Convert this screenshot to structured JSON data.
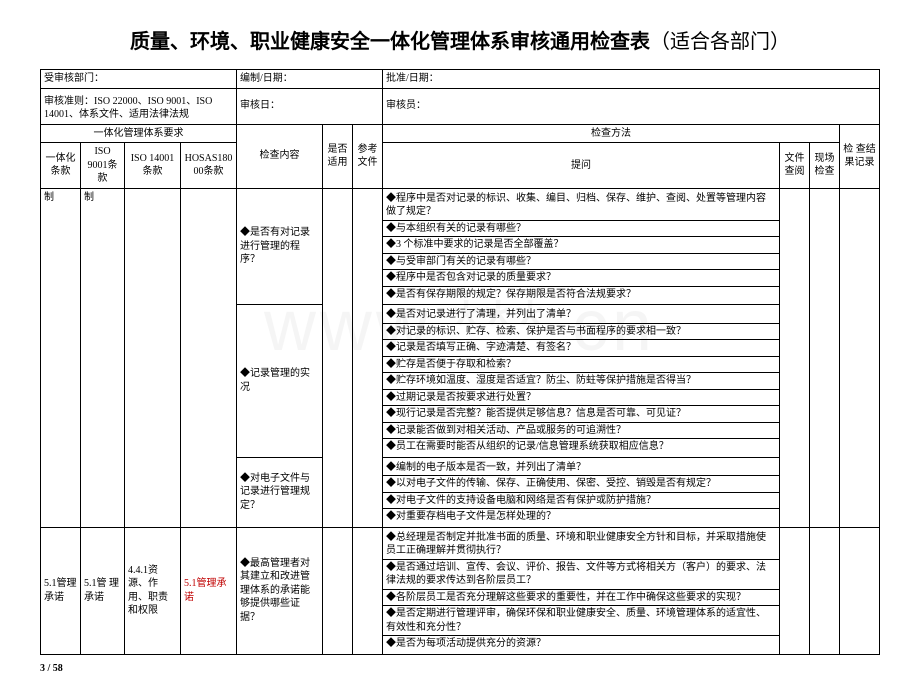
{
  "title_main": "质量、环境、职业健康安全一体化管理体系审核通用检查表",
  "title_sub": "（适合各部门）",
  "meta": {
    "audited_dept_label": "受审核部门：",
    "compile_date_label": "编制/日期：",
    "approve_date_label": "批准/日期：",
    "criteria_label": "审核准则：ISO 22000、ISO 9001、ISO 14001、体系文件、适用法律法规",
    "audit_date_label": "审核日：",
    "auditor_label": "审核员："
  },
  "head": {
    "group_req": "一体化管理体系要求",
    "c1": "一体化条款",
    "c2": "ISO 9001条款",
    "c3": "ISO 14001条款",
    "c4": "HOSAS18000条款",
    "c_inspect": "检查内容",
    "c_apply": "是否适用",
    "c_ref": "参考文件",
    "group_method": "检查方法",
    "c_ask": "提问",
    "c_doc": "文件查阅",
    "c_site": "现场检查",
    "c_result": "检 查结果记录"
  },
  "row1": {
    "c1": "制",
    "c2": "制"
  },
  "section1": {
    "inspect1": "◆是否有对记录进行管理的程序？",
    "q1": [
      "◆程序中是否对记录的标识、收集、编目、归档、保存、维护、查阅、处置等管理内容做了规定？",
      "◆与本组织有关的记录有哪些？",
      "◆3 个标准中要求的记录是否全部覆盖？",
      "◆与受审部门有关的记录有哪些？",
      "◆程序中是否包含对记录的质量要求？",
      "◆是否有保存期限的规定？保存期限是否符合法规要求？"
    ],
    "inspect2": "◆记录管理的实况",
    "q2": [
      "◆是否对记录进行了清理，并列出了清单？",
      "◆对记录的标识、贮存、检索、保护是否与书面程序的要求相一致？",
      "◆记录是否填写正确、字迹清楚、有签名？",
      "◆贮存是否便于存取和检索？",
      "◆贮存环境如温度、湿度是否适宜？防尘、防蛀等保护措施是否得当？",
      "◆过期记录是否按要求进行处置？",
      "◆现行记录是否完整？能否提供足够信息？信息是否可靠、可见证？",
      "◆记录能否做到对相关活动、产品或服务的可追溯性？",
      "◆员工在需要时能否从组织的记录/信息管理系统获取相应信息？"
    ],
    "inspect3": "◆对电子文件与记录进行管理规定？",
    "q3": [
      "◆编制的电子版本是否一致，并列出了清单？",
      "◆以对电子文件的传输、保存、正确使用、保密、受控、销毁是否有规定？",
      "◆对电子文件的支持设备电脑和网络是否有保护或防护措施？",
      "◆对重要存档电子文件是怎样处理的？"
    ]
  },
  "row2": {
    "c1": "5.1管理承诺",
    "c2": "5.1管 理 承诺",
    "c3": "4.4.1资源、作用、职责和权限",
    "c4": "5.1管理承诺",
    "inspect": "◆最高管理者对其建立和改进管理体系的承诺能够提供哪些证据？",
    "q": [
      "◆总经理是否制定并批准书面的质量、环境和职业健康安全方针和目标，并采取措施使员工正确理解并贯彻执行？",
      "◆是否通过培训、宣传、会议、评价、报告、文件等方式将相关方（客户）的要求、法律法规的要求传达到各阶层员工？",
      "◆各阶层员工是否充分理解这些要求的重要性，并在工作中确保这些要求的实现？",
      "◆是否定期进行管理评审，确保环保和职业健康安全、质量、环境管理体系的适宜性、有效性和充分性？",
      "◆是否为每项活动提供充分的资源？"
    ]
  },
  "page": "3 / 58",
  "watermark": "www.***.cn"
}
